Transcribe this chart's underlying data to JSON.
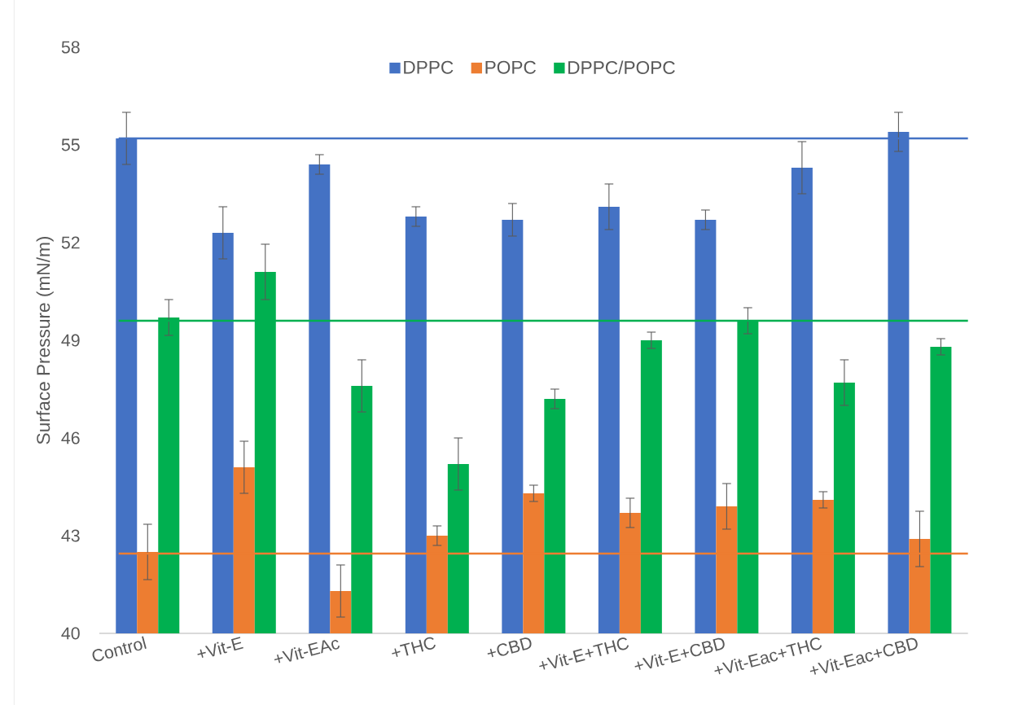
{
  "chart_data": {
    "type": "bar",
    "ylabel": "Surface Pressure (mN/m)",
    "categories": [
      "Control",
      "+Vit-E",
      "+Vit-EAc",
      "+THC",
      "+CBD",
      "+Vit-E+THC",
      "+Vit-E+CBD",
      "+Vit-Eac+THC",
      "+Vit-Eac+CBD"
    ],
    "series": [
      {
        "name": "DPPC",
        "color": "#4472c4",
        "values": [
          55.2,
          52.3,
          54.4,
          52.8,
          52.7,
          53.1,
          52.7,
          54.3,
          55.4
        ],
        "errors": [
          0.8,
          0.8,
          0.3,
          0.3,
          0.5,
          0.7,
          0.3,
          0.8,
          0.6
        ]
      },
      {
        "name": "POPC",
        "color": "#ed7d31",
        "values": [
          42.5,
          45.1,
          41.3,
          43.0,
          44.3,
          43.7,
          43.9,
          44.1,
          42.9
        ],
        "errors": [
          0.85,
          0.8,
          0.8,
          0.3,
          0.25,
          0.45,
          0.7,
          0.25,
          0.85
        ]
      },
      {
        "name": "DPPC/POPC",
        "color": "#00b050",
        "values": [
          49.7,
          51.1,
          47.6,
          45.2,
          47.2,
          49.0,
          49.6,
          47.7,
          48.8
        ],
        "errors": [
          0.55,
          0.85,
          0.8,
          0.8,
          0.3,
          0.25,
          0.4,
          0.7,
          0.25
        ]
      }
    ],
    "ylim": [
      40,
      58
    ],
    "yticks": [
      40,
      43,
      46,
      49,
      52,
      55,
      58
    ],
    "ref_lines": [
      {
        "axis": "y",
        "value": 55.2,
        "color": "#4472c4"
      },
      {
        "axis": "y",
        "value": 49.6,
        "color": "#00b050"
      },
      {
        "axis": "y",
        "value": 42.45,
        "color": "#ed7d31"
      }
    ],
    "legend": "top"
  }
}
